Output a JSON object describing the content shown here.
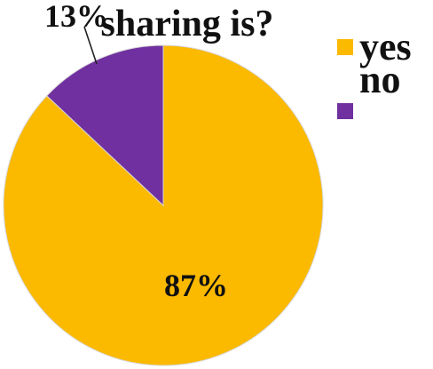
{
  "chart_data": {
    "type": "pie",
    "title": "sharing is?",
    "slices": [
      {
        "label": "yes",
        "value": 87,
        "value_label": "87%",
        "color": "#FBB900"
      },
      {
        "label": "no",
        "value": 13,
        "value_label": "13%",
        "color": "#7030A0"
      }
    ],
    "legend_position": "right"
  }
}
